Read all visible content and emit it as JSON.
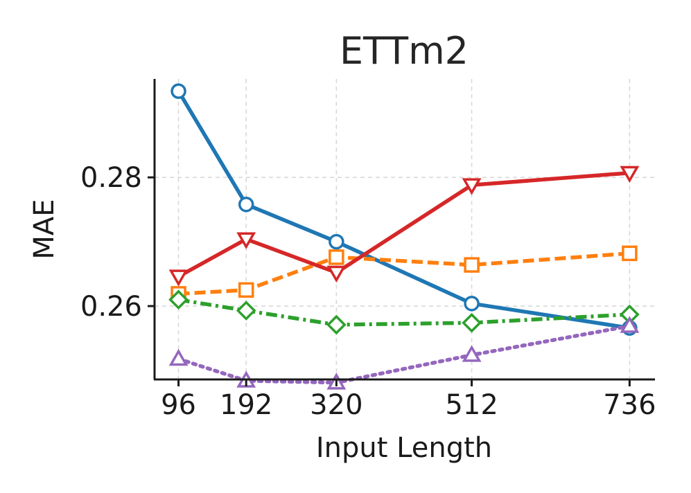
{
  "chart_data": {
    "type": "line",
    "title": "ETTm2",
    "xlabel": "Input Length",
    "ylabel": "MAE",
    "x": [
      96,
      192,
      320,
      512,
      736
    ],
    "x_tick_labels": [
      "96",
      "192",
      "320",
      "512",
      "736"
    ],
    "y_ticks": [
      0.26,
      0.28
    ],
    "y_tick_labels": [
      "0.26",
      "0.28"
    ],
    "xlim": [
      62,
      772
    ],
    "ylim": [
      0.2486,
      0.2953
    ],
    "grid": true,
    "series": [
      {
        "values": [
          0.2934,
          0.2758,
          0.27,
          0.2604,
          0.2566
        ],
        "color": "#1f77b4",
        "dash": "solid",
        "marker": "circle"
      },
      {
        "values": [
          0.2619,
          0.2625,
          0.2676,
          0.2664,
          0.2682
        ],
        "color": "#ff7f0e",
        "dash": "dashed",
        "marker": "square"
      },
      {
        "values": [
          0.261,
          0.2593,
          0.2571,
          0.2574,
          0.2587
        ],
        "color": "#2ca02c",
        "dash": "dashdot",
        "marker": "diamond"
      },
      {
        "values": [
          0.2646,
          0.2704,
          0.2652,
          0.2788,
          0.2807
        ],
        "color": "#d62728",
        "dash": "solid",
        "marker": "triangle-down"
      },
      {
        "values": [
          0.2518,
          0.2484,
          0.2481,
          0.2524,
          0.2569
        ],
        "color": "#9467bd",
        "dash": "dotted",
        "marker": "triangle-up"
      }
    ]
  }
}
